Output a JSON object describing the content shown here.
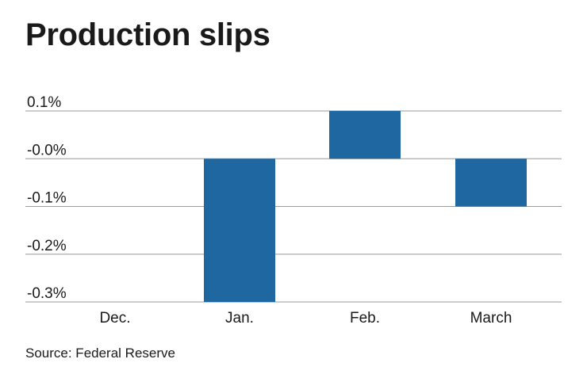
{
  "title": "Production slips",
  "source": "Source: Federal Reserve",
  "colors": {
    "bar": "#1f67a0",
    "grid": "#9a9a9a"
  },
  "chart_data": {
    "type": "bar",
    "title": "Production slips",
    "categories": [
      "Dec.",
      "Jan.",
      "Feb.",
      "March"
    ],
    "values": [
      0.0,
      -0.3,
      0.1,
      -0.1
    ],
    "y_ticks": [
      0.1,
      0.0,
      -0.1,
      -0.2,
      -0.3
    ],
    "y_tick_labels": [
      "0.1%",
      "-0.0%",
      "-0.1%",
      "-0.2%",
      "-0.3%"
    ],
    "ylim": [
      -0.3,
      0.1
    ],
    "xlabel": "",
    "ylabel": "",
    "grid": true,
    "legend": "none"
  }
}
